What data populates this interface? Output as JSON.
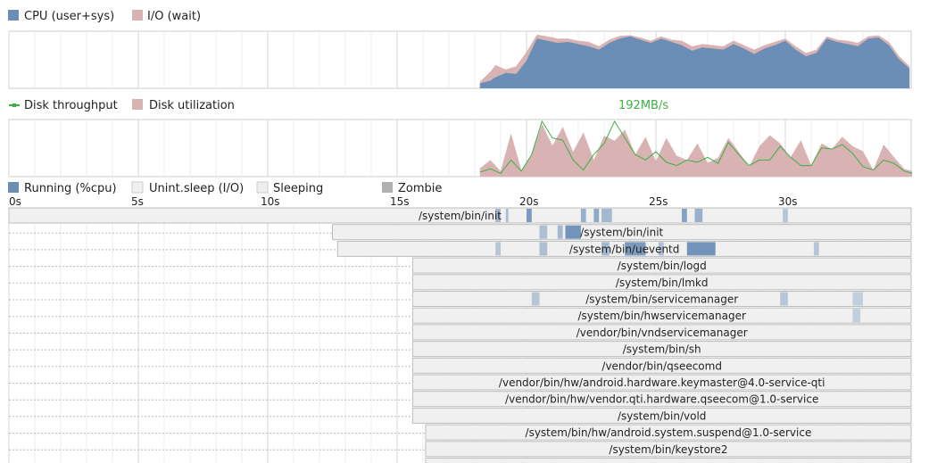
{
  "chart_data": [
    {
      "type": "area",
      "legend_placement": "top-left",
      "grid": true,
      "x_range": [
        0,
        35
      ],
      "ylim": [
        0,
        100
      ],
      "series": [
        {
          "name": "CPU (user+sys)",
          "color": "#6b8eb6",
          "x": [
            18.2,
            18.6,
            18.8,
            19.2,
            19.6,
            20.0,
            20.4,
            20.8,
            21.2,
            21.6,
            22.0,
            22.4,
            22.8,
            23.2,
            23.6,
            24.0,
            24.4,
            24.8,
            25.2,
            25.6,
            26.0,
            26.4,
            26.8,
            27.2,
            27.6,
            28.0,
            28.4,
            28.8,
            29.2,
            29.6,
            30.0,
            30.4,
            30.8,
            31.2,
            31.6,
            32.0,
            32.4,
            32.8,
            33.2,
            33.6,
            34.0,
            34.4,
            34.8
          ],
          "values": [
            9,
            14,
            20,
            28,
            26,
            50,
            90,
            86,
            82,
            84,
            80,
            76,
            70,
            82,
            90,
            94,
            88,
            82,
            90,
            84,
            78,
            68,
            74,
            72,
            70,
            80,
            72,
            62,
            72,
            78,
            86,
            70,
            58,
            64,
            90,
            84,
            80,
            76,
            90,
            92,
            78,
            52,
            36
          ]
        },
        {
          "name": "I/O (wait)",
          "color": "#d9b3b3",
          "x": [
            18.2,
            18.6,
            18.8,
            19.2,
            19.6,
            20.0,
            20.4,
            20.8,
            21.2,
            21.6,
            22.0,
            22.4,
            22.8,
            23.2,
            23.6,
            24.0,
            24.4,
            24.8,
            25.2,
            25.6,
            26.0,
            26.4,
            26.8,
            27.2,
            27.6,
            28.0,
            28.4,
            28.8,
            29.2,
            29.6,
            30.0,
            30.4,
            30.8,
            31.2,
            31.6,
            32.0,
            32.4,
            32.8,
            33.2,
            33.6,
            34.0,
            34.4,
            34.8
          ],
          "values": [
            12,
            30,
            42,
            34,
            40,
            66,
            97,
            94,
            90,
            90,
            86,
            84,
            76,
            88,
            95,
            96,
            92,
            86,
            94,
            88,
            86,
            76,
            80,
            78,
            76,
            86,
            78,
            70,
            78,
            84,
            90,
            76,
            64,
            70,
            94,
            88,
            86,
            82,
            94,
            96,
            84,
            58,
            40
          ]
        }
      ]
    },
    {
      "type": "area",
      "legend_placement": "top-left",
      "grid": true,
      "x_range": [
        0,
        35
      ],
      "ylim": [
        0,
        100
      ],
      "annotations": [
        "192MB/s"
      ],
      "series": [
        {
          "name": "Disk utilization",
          "color": "#d9b3b3",
          "x": [
            18.2,
            18.6,
            19.0,
            19.4,
            19.8,
            20.2,
            20.6,
            21.0,
            21.4,
            21.8,
            22.2,
            22.6,
            23.0,
            23.4,
            23.8,
            24.2,
            24.6,
            25.0,
            25.4,
            25.8,
            26.2,
            26.6,
            27.0,
            27.4,
            27.8,
            28.2,
            28.6,
            29.0,
            29.4,
            29.8,
            30.2,
            30.6,
            31.0,
            31.4,
            31.8,
            32.2,
            32.6,
            33.0,
            33.4,
            33.8,
            34.2,
            34.6,
            34.9
          ],
          "values": [
            15,
            30,
            10,
            78,
            12,
            40,
            95,
            56,
            90,
            45,
            80,
            30,
            74,
            65,
            85,
            40,
            72,
            28,
            70,
            38,
            30,
            60,
            25,
            34,
            70,
            45,
            18,
            55,
            75,
            60,
            35,
            66,
            20,
            60,
            50,
            72,
            55,
            46,
            12,
            58,
            35,
            14,
            10
          ]
        },
        {
          "name": "Disk throughput",
          "color": "#3cb043",
          "x": [
            18.2,
            18.6,
            19.0,
            19.4,
            19.8,
            20.2,
            20.6,
            21.0,
            21.4,
            21.8,
            22.2,
            22.6,
            23.0,
            23.4,
            23.8,
            24.2,
            24.6,
            25.0,
            25.4,
            25.8,
            26.2,
            26.6,
            27.0,
            27.4,
            27.8,
            28.2,
            28.6,
            29.0,
            29.4,
            29.8,
            30.2,
            30.6,
            31.0,
            31.4,
            31.8,
            32.2,
            32.6,
            33.0,
            33.4,
            33.8,
            34.2,
            34.6,
            34.9
          ],
          "values": [
            8,
            14,
            6,
            30,
            10,
            40,
            100,
            70,
            66,
            30,
            12,
            40,
            60,
            100,
            70,
            40,
            30,
            45,
            26,
            20,
            30,
            26,
            35,
            24,
            62,
            40,
            20,
            30,
            30,
            55,
            35,
            20,
            20,
            52,
            50,
            58,
            42,
            18,
            12,
            30,
            24,
            10,
            6
          ]
        }
      ]
    },
    {
      "type": "timeline",
      "legend_placement": "top-left",
      "grid": true,
      "x_range": [
        0,
        35
      ],
      "x_ticks": [
        "0s",
        "5s",
        "10s",
        "15s",
        "20s",
        "25s",
        "30s"
      ],
      "legend": [
        {
          "name": "Running (%cpu)",
          "color": "#6b8eb6"
        },
        {
          "name": "Unint.sleep (I/O)",
          "color": "#f0f0f0"
        },
        {
          "name": "Sleeping",
          "color": "#eeeeee"
        },
        {
          "name": "Zombie",
          "color": "#b0b0b0"
        }
      ],
      "processes": [
        {
          "name": "/system/bin/init",
          "start": 0.0,
          "dotted_from": null,
          "running": [
            [
              18.8,
              19.0,
              0.5
            ],
            [
              19.2,
              19.3,
              0.4
            ],
            [
              20.0,
              20.2,
              0.9
            ],
            [
              22.1,
              22.3,
              0.6
            ],
            [
              22.6,
              22.8,
              0.7
            ],
            [
              22.9,
              23.3,
              0.5
            ],
            [
              26.0,
              26.2,
              0.8
            ],
            [
              26.5,
              26.8,
              0.6
            ],
            [
              29.9,
              30.1,
              0.3
            ]
          ]
        },
        {
          "name": "/system/bin/init",
          "start": 12.5,
          "dotted_from": 0.0,
          "running": [
            [
              20.5,
              20.8,
              0.4
            ],
            [
              21.5,
              22.1,
              1.0
            ],
            [
              21.2,
              21.4,
              0.5
            ]
          ]
        },
        {
          "name": "/system/bin/ueventd",
          "start": 12.7,
          "dotted_from": 0.0,
          "running": [
            [
              18.8,
              19.0,
              0.3
            ],
            [
              20.5,
              20.8,
              0.4
            ],
            [
              22.9,
              23.2,
              0.5
            ],
            [
              23.8,
              24.6,
              0.9
            ],
            [
              25.1,
              25.3,
              0.4
            ],
            [
              26.2,
              27.3,
              1.0
            ],
            [
              31.1,
              31.3,
              0.3
            ]
          ]
        },
        {
          "name": "/system/bin/logd",
          "start": 15.6,
          "dotted_from": 0.0,
          "running": []
        },
        {
          "name": "/system/bin/lmkd",
          "start": 15.6,
          "dotted_from": 0.0,
          "running": []
        },
        {
          "name": "/system/bin/servicemanager",
          "start": 15.6,
          "dotted_from": 0.0,
          "running": [
            [
              20.2,
              20.5,
              0.3
            ],
            [
              29.8,
              30.1,
              0.3
            ],
            [
              32.6,
              33.0,
              0.2
            ]
          ]
        },
        {
          "name": "/system/bin/hwservicemanager",
          "start": 15.6,
          "dotted_from": 0.0,
          "running": [
            [
              32.6,
              32.9,
              0.2
            ]
          ]
        },
        {
          "name": "/vendor/bin/vndservicemanager",
          "start": 15.6,
          "dotted_from": 0.0,
          "running": []
        },
        {
          "name": "/system/bin/sh",
          "start": 15.6,
          "dotted_from": 0.0,
          "running": []
        },
        {
          "name": "/vendor/bin/qseecomd",
          "start": 15.6,
          "dotted_from": 0.0,
          "running": []
        },
        {
          "name": "/vendor/bin/hw/android.hardware.keymaster@4.0-service-qti",
          "start": 15.6,
          "dotted_from": 0.0,
          "running": []
        },
        {
          "name": "/vendor/bin/hw/vendor.qti.hardware.qseecom@1.0-service",
          "start": 15.6,
          "dotted_from": 0.0,
          "running": []
        },
        {
          "name": "/system/bin/vold",
          "start": 15.6,
          "dotted_from": 0.0,
          "running": []
        },
        {
          "name": "/system/bin/hw/android.system.suspend@1.0-service",
          "start": 16.1,
          "dotted_from": 0.0,
          "running": []
        },
        {
          "name": "/system/bin/keystore2",
          "start": 16.1,
          "dotted_from": 0.0,
          "running": []
        },
        {
          "name": "",
          "start": 16.1,
          "dotted_from": 0.0,
          "running": []
        }
      ]
    }
  ]
}
